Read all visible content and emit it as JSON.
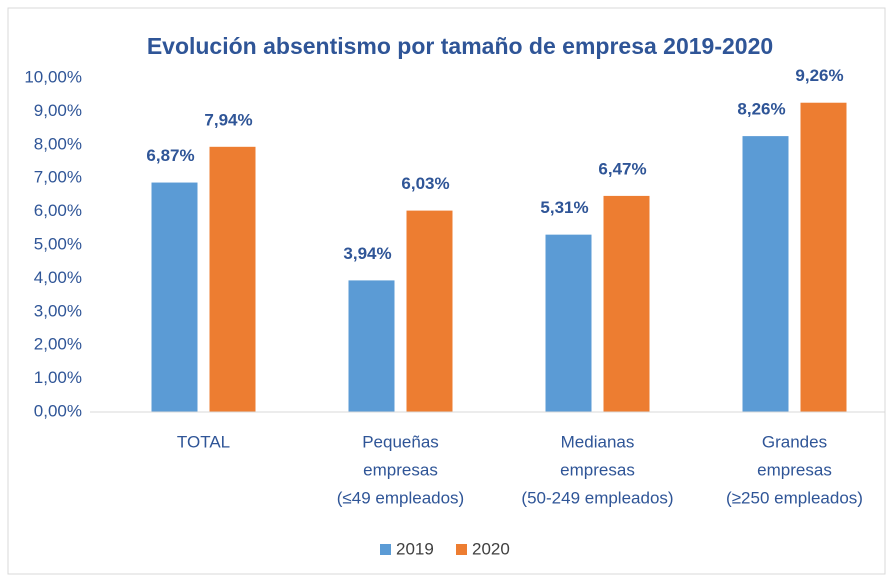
{
  "chart_data": {
    "type": "bar",
    "title": "Evolución absentismo por tamaño de empresa 2019-2020",
    "categories": [
      [
        "TOTAL"
      ],
      [
        "Pequeñas",
        "empresas",
        "(≤49 empleados)"
      ],
      [
        "Medianas",
        "empresas",
        "(50-249 empleados)"
      ],
      [
        "Grandes",
        "empresas",
        "(≥250 empleados)"
      ]
    ],
    "series": [
      {
        "name": "2019",
        "color": "#5b9bd5",
        "values": [
          6.87,
          3.94,
          5.31,
          8.26
        ],
        "value_labels": [
          "6,87%",
          "3,94%",
          "5,31%",
          "8,26%"
        ]
      },
      {
        "name": "2020",
        "color": "#ed7d31",
        "values": [
          7.94,
          6.03,
          6.47,
          9.26
        ],
        "value_labels": [
          "7,94%",
          "6,03%",
          "6,47%",
          "9,26%"
        ]
      }
    ],
    "ylim": [
      0,
      10
    ],
    "yticks": [
      {
        "value": 0,
        "label": "0,00%"
      },
      {
        "value": 1,
        "label": "1,00%"
      },
      {
        "value": 2,
        "label": "2,00%"
      },
      {
        "value": 3,
        "label": "3,00%"
      },
      {
        "value": 4,
        "label": "4,00%"
      },
      {
        "value": 5,
        "label": "5,00%"
      },
      {
        "value": 6,
        "label": "6,00%"
      },
      {
        "value": 7,
        "label": "7,00%"
      },
      {
        "value": 8,
        "label": "8,00%"
      },
      {
        "value": 9,
        "label": "9,00%"
      },
      {
        "value": 10,
        "label": "10,00%"
      }
    ],
    "grid": false,
    "legend": "bottom"
  }
}
